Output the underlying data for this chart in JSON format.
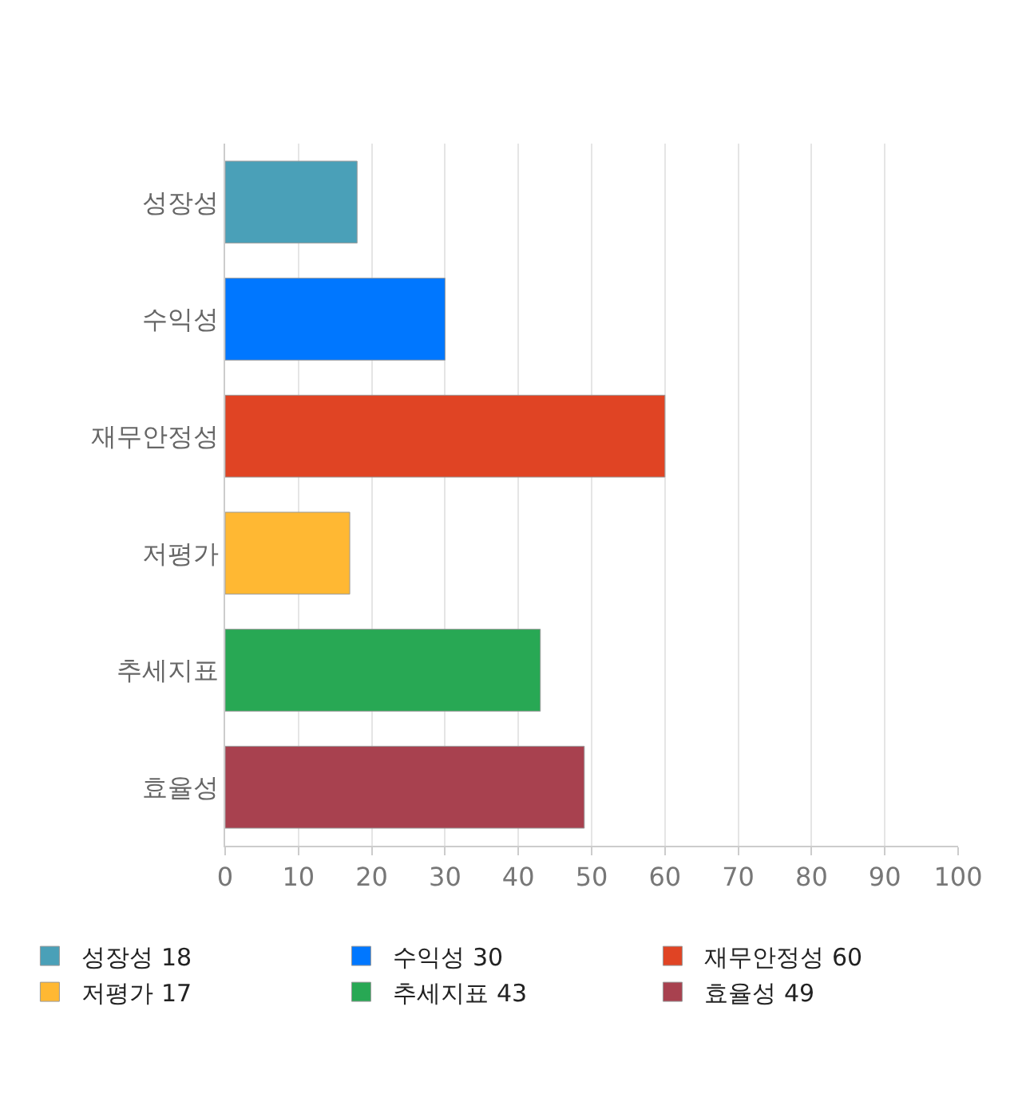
{
  "chart_data": {
    "type": "bar",
    "orientation": "horizontal",
    "categories": [
      "성장성",
      "수익성",
      "재무안정성",
      "저평가",
      "추세지표",
      "효율성"
    ],
    "series": [
      {
        "name": "성장성 18",
        "color": "#4aa0b8",
        "values": [
          18,
          null,
          null,
          null,
          null,
          null
        ]
      },
      {
        "name": "수익성 30",
        "color": "#0077ff",
        "values": [
          null,
          30,
          null,
          null,
          null,
          null
        ]
      },
      {
        "name": "재무안정성 60",
        "color": "#e04424",
        "values": [
          null,
          null,
          60,
          null,
          null,
          null
        ]
      },
      {
        "name": "저평가 17",
        "color": "#ffb833",
        "values": [
          null,
          null,
          null,
          17,
          null,
          null
        ]
      },
      {
        "name": "추세지표 43",
        "color": "#28a854",
        "values": [
          null,
          null,
          null,
          null,
          43,
          null
        ]
      },
      {
        "name": "효율성 49",
        "color": "#a8414f",
        "values": [
          null,
          null,
          null,
          null,
          null,
          49
        ]
      }
    ],
    "xlim": [
      0,
      100
    ],
    "xticks": [
      0,
      10,
      20,
      30,
      40,
      50,
      60,
      70,
      80,
      90,
      100
    ],
    "grid": "x",
    "legend": "bottom"
  }
}
